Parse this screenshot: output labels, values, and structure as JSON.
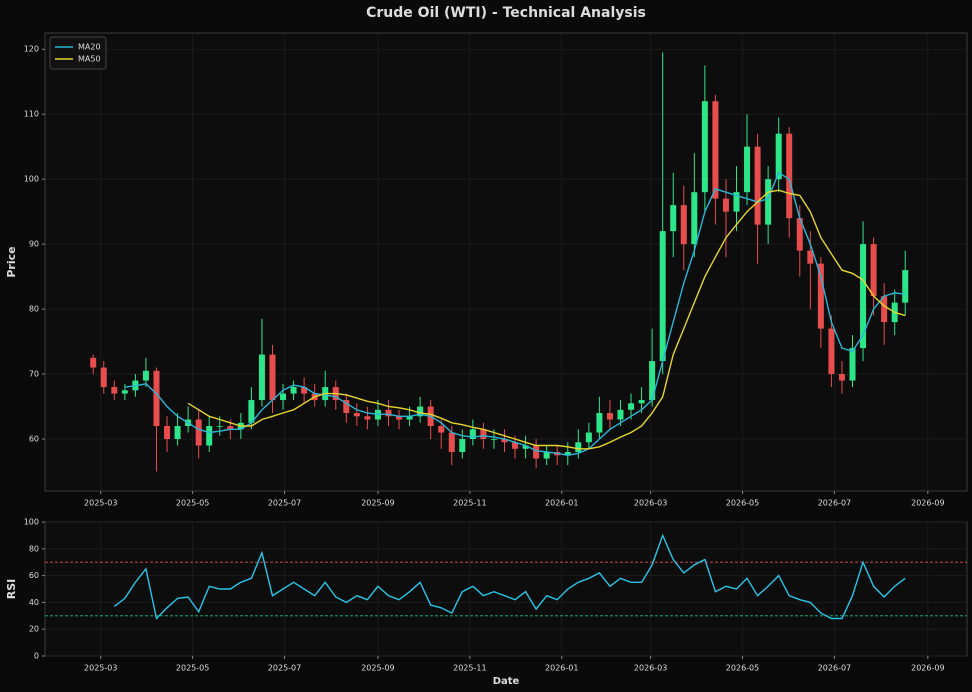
{
  "chart_data": [
    {
      "type": "candlestick",
      "title": "Crude Oil (WTI) - Technical Analysis",
      "ylabel": "Price",
      "x": [
        "2025-02-24",
        "2025-03-03",
        "2025-03-10",
        "2025-03-17",
        "2025-03-24",
        "2025-03-31",
        "2025-04-07",
        "2025-04-14",
        "2025-04-21",
        "2025-04-28",
        "2025-05-05",
        "2025-05-12",
        "2025-05-19",
        "2025-05-26",
        "2025-06-02",
        "2025-06-09",
        "2025-06-16",
        "2025-06-23",
        "2025-06-30",
        "2025-07-07",
        "2025-07-14",
        "2025-07-21",
        "2025-07-28",
        "2025-08-04",
        "2025-08-11",
        "2025-08-18",
        "2025-08-25",
        "2025-09-01",
        "2025-09-08",
        "2025-09-15",
        "2025-09-22",
        "2025-09-29",
        "2025-10-06",
        "2025-10-13",
        "2025-10-20",
        "2025-10-27",
        "2025-11-03",
        "2025-11-10",
        "2025-11-17",
        "2025-11-24",
        "2025-12-01",
        "2025-12-08",
        "2025-12-15",
        "2025-12-22",
        "2025-12-29",
        "2026-01-05",
        "2026-01-12",
        "2026-01-19",
        "2026-01-26",
        "2026-02-02",
        "2026-02-09",
        "2026-02-16",
        "2026-02-23",
        "2026-03-02",
        "2026-03-09",
        "2026-03-16",
        "2026-03-23",
        "2026-03-30",
        "2026-04-06",
        "2026-04-13",
        "2026-04-20",
        "2026-04-27",
        "2026-05-04",
        "2026-05-11",
        "2026-05-18",
        "2026-05-25",
        "2026-06-01",
        "2026-06-08",
        "2026-06-15",
        "2026-06-22",
        "2026-06-29",
        "2026-07-06",
        "2026-07-13",
        "2026-07-20",
        "2026-07-27",
        "2026-08-03",
        "2026-08-10",
        "2026-08-17"
      ],
      "open": [
        72.5,
        71,
        68,
        67,
        67.5,
        69,
        70.5,
        62,
        60,
        62,
        63,
        59,
        62,
        62,
        61.5,
        62.5,
        66,
        73,
        66,
        67,
        68,
        67,
        66,
        68,
        66,
        64,
        63.5,
        63,
        64.5,
        63.5,
        63,
        63.5,
        65,
        62,
        61,
        58,
        60,
        61.5,
        60,
        60,
        59.5,
        58.5,
        59,
        57,
        58,
        57.5,
        58,
        59.5,
        61,
        64,
        63,
        64.5,
        65.5,
        66,
        72,
        92,
        96,
        90,
        98,
        112,
        97,
        95,
        98,
        105,
        93,
        100,
        107,
        94,
        89,
        87,
        77,
        70,
        69,
        74,
        90,
        82,
        78,
        81
      ],
      "high": [
        73,
        72,
        69,
        68.5,
        70,
        72.5,
        71,
        63.5,
        64,
        65,
        64.5,
        63.5,
        63.5,
        63,
        64,
        68,
        78.5,
        74.5,
        68.5,
        69,
        69.5,
        68.5,
        70.5,
        69,
        67,
        65.5,
        65,
        66,
        66,
        64.5,
        65,
        66.5,
        66,
        63,
        62,
        61.5,
        63,
        62.5,
        61.5,
        61.5,
        60.5,
        60.5,
        60,
        59,
        59,
        59.5,
        61.5,
        62.5,
        66.5,
        66,
        66,
        67,
        68,
        77,
        119.5,
        101,
        99,
        104,
        117.5,
        113,
        100,
        102,
        110,
        107,
        102,
        109.5,
        108,
        96,
        92,
        88,
        79,
        72,
        76,
        93.5,
        91,
        84,
        83,
        89
      ],
      "low": [
        70,
        67,
        66,
        66,
        66.5,
        68,
        55,
        58,
        59,
        61,
        57,
        58,
        60.5,
        60,
        60,
        61.5,
        65,
        64,
        64.5,
        66,
        65.5,
        65,
        65,
        64.5,
        62.5,
        62,
        61.5,
        62,
        62,
        61.5,
        62,
        62.5,
        60,
        58.5,
        56,
        57,
        59,
        58.5,
        58.5,
        58,
        57,
        57,
        55.5,
        56,
        56,
        56,
        57,
        58.5,
        60,
        61.5,
        62,
        63,
        64,
        65,
        70,
        88,
        86,
        88,
        95,
        93,
        88,
        92,
        96,
        87,
        90,
        98,
        91,
        85,
        80,
        74,
        68,
        67,
        68,
        72,
        79,
        74.5,
        76,
        79
      ],
      "close": [
        71,
        68,
        67,
        67.5,
        69,
        70.5,
        62,
        60,
        62,
        63,
        59,
        62,
        62,
        61.5,
        62.5,
        66,
        73,
        66,
        67,
        68,
        67,
        66,
        68,
        66,
        64,
        63.5,
        63,
        64.5,
        63.5,
        63,
        63.5,
        65,
        62,
        61,
        58,
        60,
        61.5,
        60,
        60,
        59.5,
        58.5,
        59,
        57,
        58,
        57.5,
        58,
        59.5,
        61,
        64,
        63,
        64.5,
        65.5,
        66,
        72,
        92,
        96,
        90,
        98,
        112,
        97,
        95,
        98,
        105,
        93,
        100,
        107,
        94,
        89,
        87,
        77,
        70,
        69,
        74,
        90,
        82,
        78,
        81,
        86
      ],
      "up_color": "#2ee68a",
      "down_color": "#e84d4d",
      "series": [
        {
          "name": "MA20",
          "color": "#29b6d8",
          "values": [
            null,
            null,
            null,
            68,
            68.2,
            68.5,
            67,
            65,
            63.5,
            62.5,
            61.5,
            61,
            61.2,
            61.5,
            61.5,
            62.5,
            64.5,
            66,
            67.5,
            68.3,
            68,
            67,
            66.8,
            66.5,
            65.5,
            64.5,
            64,
            63.8,
            63.8,
            63.5,
            63.5,
            63.8,
            63.5,
            62.5,
            61,
            60.5,
            60.3,
            60.5,
            60.3,
            60,
            59.5,
            59,
            58.2,
            58,
            57.8,
            57.5,
            57.8,
            58.5,
            60,
            61.5,
            62.5,
            63.5,
            64.5,
            66,
            72,
            78,
            84,
            89,
            95,
            98.5,
            98,
            97.5,
            97,
            96.5,
            97,
            101,
            100,
            94,
            90,
            85,
            78,
            74,
            73.5,
            76,
            80,
            82,
            82.5,
            82.3
          ]
        },
        {
          "name": "MA50",
          "color": "#e6d52e",
          "values": [
            null,
            null,
            null,
            null,
            null,
            null,
            null,
            null,
            null,
            65.5,
            64.5,
            63.5,
            63,
            62.5,
            62,
            62,
            63,
            63.5,
            64,
            64.5,
            65.5,
            66.5,
            67,
            67,
            66.8,
            66.3,
            65.8,
            65.5,
            65,
            64.8,
            64.5,
            64,
            63.8,
            63.2,
            62.5,
            62.2,
            61.8,
            61.5,
            61,
            60.5,
            60,
            59.5,
            59,
            59,
            59,
            58.8,
            58.5,
            58.5,
            58.8,
            59.5,
            60.3,
            61,
            62,
            64,
            66.5,
            73,
            77,
            81,
            85,
            88,
            91,
            93,
            95,
            96.5,
            98,
            98.3,
            97.8,
            97.5,
            95,
            91,
            88.5,
            86,
            85.5,
            84.5,
            82,
            80.5,
            79.5,
            79
          ]
        }
      ],
      "xlim": [
        "2025-01-23",
        "2026-09-27"
      ],
      "xticks": [
        {
          "value": "2025-03-01",
          "label": "2025-03"
        },
        {
          "value": "2025-05-01",
          "label": "2025-05"
        },
        {
          "value": "2025-07-01",
          "label": "2025-07"
        },
        {
          "value": "2025-09-01",
          "label": "2025-09"
        },
        {
          "value": "2025-11-01",
          "label": "2025-11"
        },
        {
          "value": "2026-01-01",
          "label": "2026-01"
        },
        {
          "value": "2026-03-01",
          "label": "2026-03"
        },
        {
          "value": "2026-05-01",
          "label": "2026-05"
        },
        {
          "value": "2026-07-01",
          "label": "2026-07"
        },
        {
          "value": "2026-09-01",
          "label": "2026-09"
        }
      ],
      "ylim": [
        52,
        122.5
      ],
      "yticks": [
        60,
        70,
        80,
        90,
        100,
        110,
        120
      ],
      "grid": true,
      "legend": "upper left"
    },
    {
      "type": "line",
      "ylabel": "RSI",
      "xlabel": "Date",
      "x": [
        "2025-02-24",
        "2025-03-03",
        "2025-03-10",
        "2025-03-17",
        "2025-03-24",
        "2025-03-31",
        "2025-04-07",
        "2025-04-14",
        "2025-04-21",
        "2025-04-28",
        "2025-05-05",
        "2025-05-12",
        "2025-05-19",
        "2025-05-26",
        "2025-06-02",
        "2025-06-09",
        "2025-06-16",
        "2025-06-23",
        "2025-06-30",
        "2025-07-07",
        "2025-07-14",
        "2025-07-21",
        "2025-07-28",
        "2025-08-04",
        "2025-08-11",
        "2025-08-18",
        "2025-08-25",
        "2025-09-01",
        "2025-09-08",
        "2025-09-15",
        "2025-09-22",
        "2025-09-29",
        "2025-10-06",
        "2025-10-13",
        "2025-10-20",
        "2025-10-27",
        "2025-11-03",
        "2025-11-10",
        "2025-11-17",
        "2025-11-24",
        "2025-12-01",
        "2025-12-08",
        "2025-12-15",
        "2025-12-22",
        "2025-12-29",
        "2026-01-05",
        "2026-01-12",
        "2026-01-19",
        "2026-01-26",
        "2026-02-02",
        "2026-02-09",
        "2026-02-16",
        "2026-02-23",
        "2026-03-02",
        "2026-03-09",
        "2026-03-16",
        "2026-03-23",
        "2026-03-30",
        "2026-04-06",
        "2026-04-13",
        "2026-04-20",
        "2026-04-27",
        "2026-05-04",
        "2026-05-11",
        "2026-05-18",
        "2026-05-25",
        "2026-06-01",
        "2026-06-08",
        "2026-06-15",
        "2026-06-22",
        "2026-06-29",
        "2026-07-06",
        "2026-07-13",
        "2026-07-20",
        "2026-07-27",
        "2026-08-03",
        "2026-08-10",
        "2026-08-17"
      ],
      "values": [
        null,
        null,
        37,
        43,
        55,
        65,
        28,
        36,
        43,
        44,
        33,
        52,
        50,
        50,
        55,
        58,
        77,
        45,
        50,
        55,
        50,
        45,
        55,
        44,
        40,
        45,
        42,
        52,
        45,
        42,
        48,
        55,
        38,
        36,
        32,
        48,
        52,
        45,
        48,
        45,
        42,
        48,
        35,
        45,
        42,
        50,
        55,
        58,
        62,
        52,
        58,
        55,
        55,
        68,
        90,
        72,
        62,
        68,
        72,
        48,
        52,
        50,
        58,
        45,
        52,
        60,
        45,
        42,
        40,
        32,
        28,
        28,
        45,
        70,
        52,
        44,
        52,
        58
      ],
      "color": "#29c4e6",
      "hlines": [
        {
          "value": 70,
          "color": "#e05050"
        },
        {
          "value": 30,
          "color": "#20c080"
        }
      ],
      "xlim": [
        "2025-01-23",
        "2026-09-27"
      ],
      "xticks": [
        {
          "value": "2025-03-01",
          "label": "2025-03"
        },
        {
          "value": "2025-05-01",
          "label": "2025-05"
        },
        {
          "value": "2025-07-01",
          "label": "2025-07"
        },
        {
          "value": "2025-09-01",
          "label": "2025-09"
        },
        {
          "value": "2025-11-01",
          "label": "2025-11"
        },
        {
          "value": "2026-01-01",
          "label": "2026-01"
        },
        {
          "value": "2026-03-01",
          "label": "2026-03"
        },
        {
          "value": "2026-05-01",
          "label": "2026-05"
        },
        {
          "value": "2026-07-01",
          "label": "2026-07"
        },
        {
          "value": "2026-09-01",
          "label": "2026-09"
        }
      ],
      "ylim": [
        0,
        100
      ],
      "yticks": [
        0,
        20,
        40,
        60,
        80,
        100
      ],
      "grid": true
    }
  ]
}
